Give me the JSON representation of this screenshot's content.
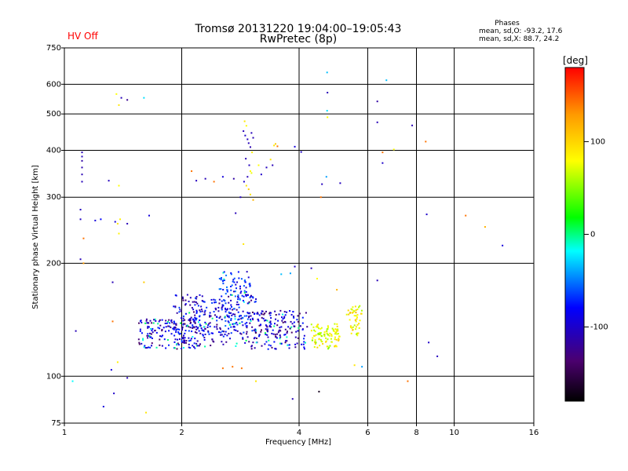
{
  "status": {
    "hv": "HV Off"
  },
  "chart_data": {
    "type": "scatter",
    "title": "Tromsø 20131220 19:04:00–19:05:43",
    "subtitle": "RwPretec (8p)",
    "phase_box": {
      "title": "Phases",
      "line_o": "mean, sd,O: -93.2, 17.6",
      "line_x": "mean, sd,X:  88.7, 24.2"
    },
    "xlabel": "Frequency [MHz]",
    "ylabel": "Stationary phase Virtual Height [km]",
    "xscale": "log",
    "yscale": "log",
    "xlim": [
      1,
      16
    ],
    "ylim": [
      75,
      750
    ],
    "xticks": [
      1,
      2,
      4,
      6,
      8,
      10,
      16
    ],
    "yticks": [
      75,
      100,
      200,
      300,
      400,
      500,
      600,
      750
    ],
    "grid": true,
    "legend": "colorbar-right",
    "colorbar": {
      "label": "[deg]",
      "range": [
        -180,
        180
      ],
      "ticks": [
        100,
        0,
        -100
      ]
    },
    "points": [
      {
        "x": 1.11,
        "y": 395,
        "phase": -120
      },
      {
        "x": 1.11,
        "y": 385,
        "phase": -118
      },
      {
        "x": 1.11,
        "y": 375,
        "phase": -125
      },
      {
        "x": 1.11,
        "y": 360,
        "phase": -122
      },
      {
        "x": 1.11,
        "y": 345,
        "phase": -121
      },
      {
        "x": 1.11,
        "y": 330,
        "phase": -119
      },
      {
        "x": 1.1,
        "y": 278,
        "phase": -118
      },
      {
        "x": 1.1,
        "y": 262,
        "phase": -116
      },
      {
        "x": 1.12,
        "y": 233,
        "phase": 150
      },
      {
        "x": 1.1,
        "y": 205,
        "phase": -120
      },
      {
        "x": 1.12,
        "y": 200,
        "phase": 140
      },
      {
        "x": 1.07,
        "y": 132,
        "phase": -120
      },
      {
        "x": 1.05,
        "y": 97,
        "phase": -20
      },
      {
        "x": 1.2,
        "y": 260,
        "phase": -110
      },
      {
        "x": 1.24,
        "y": 262,
        "phase": -100
      },
      {
        "x": 1.3,
        "y": 332,
        "phase": -118
      },
      {
        "x": 1.33,
        "y": 178,
        "phase": -120
      },
      {
        "x": 1.35,
        "y": 258,
        "phase": -112
      },
      {
        "x": 1.37,
        "y": 255,
        "phase": 110
      },
      {
        "x": 1.39,
        "y": 262,
        "phase": 105
      },
      {
        "x": 1.38,
        "y": 240,
        "phase": 105
      },
      {
        "x": 1.45,
        "y": 255,
        "phase": -120
      },
      {
        "x": 1.36,
        "y": 565,
        "phase": 100
      },
      {
        "x": 1.38,
        "y": 528,
        "phase": 110
      },
      {
        "x": 1.4,
        "y": 552,
        "phase": -120
      },
      {
        "x": 1.45,
        "y": 545,
        "phase": -130
      },
      {
        "x": 1.38,
        "y": 322,
        "phase": 100
      },
      {
        "x": 1.33,
        "y": 140,
        "phase": 150
      },
      {
        "x": 1.32,
        "y": 104,
        "phase": -110
      },
      {
        "x": 1.34,
        "y": 90,
        "phase": -115
      },
      {
        "x": 1.37,
        "y": 109,
        "phase": 105
      },
      {
        "x": 1.45,
        "y": 99,
        "phase": -120
      },
      {
        "x": 1.26,
        "y": 83,
        "phase": -110
      },
      {
        "x": 1.6,
        "y": 552,
        "phase": -30
      },
      {
        "x": 1.65,
        "y": 268,
        "phase": -110
      },
      {
        "x": 1.6,
        "y": 178,
        "phase": 120
      },
      {
        "x": 1.62,
        "y": 80,
        "phase": 110
      },
      {
        "x": 2.12,
        "y": 352,
        "phase": 150
      },
      {
        "x": 2.18,
        "y": 332,
        "phase": -118
      },
      {
        "x": 2.3,
        "y": 336,
        "phase": -120
      },
      {
        "x": 2.42,
        "y": 330,
        "phase": 150
      },
      {
        "x": 2.55,
        "y": 340,
        "phase": -110
      },
      {
        "x": 2.72,
        "y": 336,
        "phase": -125
      },
      {
        "x": 2.75,
        "y": 272,
        "phase": -120
      },
      {
        "x": 2.83,
        "y": 300,
        "phase": -118
      },
      {
        "x": 2.88,
        "y": 225,
        "phase": 110
      },
      {
        "x": 2.9,
        "y": 478,
        "phase": 110
      },
      {
        "x": 2.93,
        "y": 465,
        "phase": 100
      },
      {
        "x": 2.88,
        "y": 450,
        "phase": -120
      },
      {
        "x": 2.91,
        "y": 438,
        "phase": -115
      },
      {
        "x": 2.95,
        "y": 428,
        "phase": -118
      },
      {
        "x": 2.97,
        "y": 418,
        "phase": -120
      },
      {
        "x": 3.0,
        "y": 408,
        "phase": -122
      },
      {
        "x": 3.02,
        "y": 445,
        "phase": -119
      },
      {
        "x": 3.05,
        "y": 432,
        "phase": -121
      },
      {
        "x": 3.03,
        "y": 395,
        "phase": 105
      },
      {
        "x": 2.92,
        "y": 380,
        "phase": -120
      },
      {
        "x": 2.98,
        "y": 365,
        "phase": -118
      },
      {
        "x": 3.0,
        "y": 352,
        "phase": 100
      },
      {
        "x": 3.02,
        "y": 348,
        "phase": 95
      },
      {
        "x": 2.95,
        "y": 340,
        "phase": -120
      },
      {
        "x": 2.89,
        "y": 330,
        "phase": -115
      },
      {
        "x": 2.93,
        "y": 322,
        "phase": 110
      },
      {
        "x": 2.97,
        "y": 315,
        "phase": 120
      },
      {
        "x": 3.0,
        "y": 305,
        "phase": 110
      },
      {
        "x": 3.05,
        "y": 295,
        "phase": 130
      },
      {
        "x": 3.15,
        "y": 365,
        "phase": 100
      },
      {
        "x": 3.2,
        "y": 345,
        "phase": -115
      },
      {
        "x": 3.3,
        "y": 360,
        "phase": -118
      },
      {
        "x": 3.38,
        "y": 378,
        "phase": 110
      },
      {
        "x": 3.45,
        "y": 412,
        "phase": 110
      },
      {
        "x": 3.48,
        "y": 416,
        "phase": 120
      },
      {
        "x": 3.52,
        "y": 410,
        "phase": 150
      },
      {
        "x": 3.42,
        "y": 365,
        "phase": -120
      },
      {
        "x": 3.9,
        "y": 409,
        "phase": -110
      },
      {
        "x": 4.05,
        "y": 396,
        "phase": -115
      },
      {
        "x": 4.55,
        "y": 300,
        "phase": 150
      },
      {
        "x": 4.58,
        "y": 325,
        "phase": -118
      },
      {
        "x": 4.7,
        "y": 340,
        "phase": -50
      },
      {
        "x": 4.72,
        "y": 645,
        "phase": -40
      },
      {
        "x": 4.73,
        "y": 570,
        "phase": -120
      },
      {
        "x": 4.72,
        "y": 510,
        "phase": -30
      },
      {
        "x": 4.73,
        "y": 490,
        "phase": 100
      },
      {
        "x": 5.1,
        "y": 327,
        "phase": -118
      },
      {
        "x": 6.35,
        "y": 540,
        "phase": -125
      },
      {
        "x": 6.35,
        "y": 475,
        "phase": -120
      },
      {
        "x": 6.55,
        "y": 370,
        "phase": -115
      },
      {
        "x": 6.55,
        "y": 395,
        "phase": 150
      },
      {
        "x": 6.7,
        "y": 615,
        "phase": -40
      },
      {
        "x": 7.0,
        "y": 402,
        "phase": 100
      },
      {
        "x": 7.8,
        "y": 466,
        "phase": -120
      },
      {
        "x": 8.45,
        "y": 422,
        "phase": 150
      },
      {
        "x": 8.5,
        "y": 270,
        "phase": -115
      },
      {
        "x": 10.7,
        "y": 268,
        "phase": 150
      },
      {
        "x": 12.0,
        "y": 250,
        "phase": 130
      },
      {
        "x": 13.3,
        "y": 223,
        "phase": -110
      },
      {
        "x": 6.35,
        "y": 180,
        "phase": -120
      },
      {
        "x": 8.6,
        "y": 123,
        "phase": -115
      },
      {
        "x": 9.05,
        "y": 113,
        "phase": -118
      },
      {
        "x": 5.8,
        "y": 106,
        "phase": -50
      },
      {
        "x": 5.55,
        "y": 107,
        "phase": 110
      },
      {
        "x": 7.6,
        "y": 97,
        "phase": 150
      },
      {
        "x": 4.5,
        "y": 91,
        "phase": -170
      },
      {
        "x": 3.85,
        "y": 87,
        "phase": -120
      },
      {
        "x": 3.9,
        "y": 196,
        "phase": -115
      },
      {
        "x": 3.8,
        "y": 188,
        "phase": -50
      },
      {
        "x": 4.3,
        "y": 194,
        "phase": -120
      },
      {
        "x": 4.45,
        "y": 182,
        "phase": 100
      },
      {
        "x": 3.6,
        "y": 187,
        "phase": -40
      },
      {
        "x": 3.1,
        "y": 97,
        "phase": 110
      },
      {
        "x": 2.85,
        "y": 105,
        "phase": 150
      },
      {
        "x": 2.7,
        "y": 106,
        "phase": 150
      },
      {
        "x": 2.55,
        "y": 105,
        "phase": 150
      },
      {
        "x": 4.75,
        "y": 135,
        "phase": 100
      },
      {
        "x": 4.8,
        "y": 130,
        "phase": 110
      },
      {
        "x": 4.85,
        "y": 128,
        "phase": 95
      },
      {
        "x": 4.9,
        "y": 133,
        "phase": 100
      },
      {
        "x": 4.95,
        "y": 127,
        "phase": 105
      },
      {
        "x": 5.0,
        "y": 132,
        "phase": 90
      },
      {
        "x": 5.05,
        "y": 126,
        "phase": 110
      },
      {
        "x": 4.7,
        "y": 124,
        "phase": 100
      },
      {
        "x": 4.6,
        "y": 122,
        "phase": 115
      },
      {
        "x": 4.65,
        "y": 128,
        "phase": 90
      },
      {
        "x": 4.55,
        "y": 125,
        "phase": 80
      },
      {
        "x": 5.5,
        "y": 148,
        "phase": 110
      },
      {
        "x": 5.55,
        "y": 145,
        "phase": 100
      },
      {
        "x": 5.6,
        "y": 140,
        "phase": 95
      },
      {
        "x": 5.65,
        "y": 137,
        "phase": 110
      },
      {
        "x": 5.5,
        "y": 133,
        "phase": 100
      },
      {
        "x": 5.45,
        "y": 130,
        "phase": 105
      },
      {
        "x": 5.6,
        "y": 150,
        "phase": 120
      },
      {
        "x": 5.3,
        "y": 146,
        "phase": 90
      },
      {
        "x": 5.0,
        "y": 170,
        "phase": 130
      }
    ]
  }
}
